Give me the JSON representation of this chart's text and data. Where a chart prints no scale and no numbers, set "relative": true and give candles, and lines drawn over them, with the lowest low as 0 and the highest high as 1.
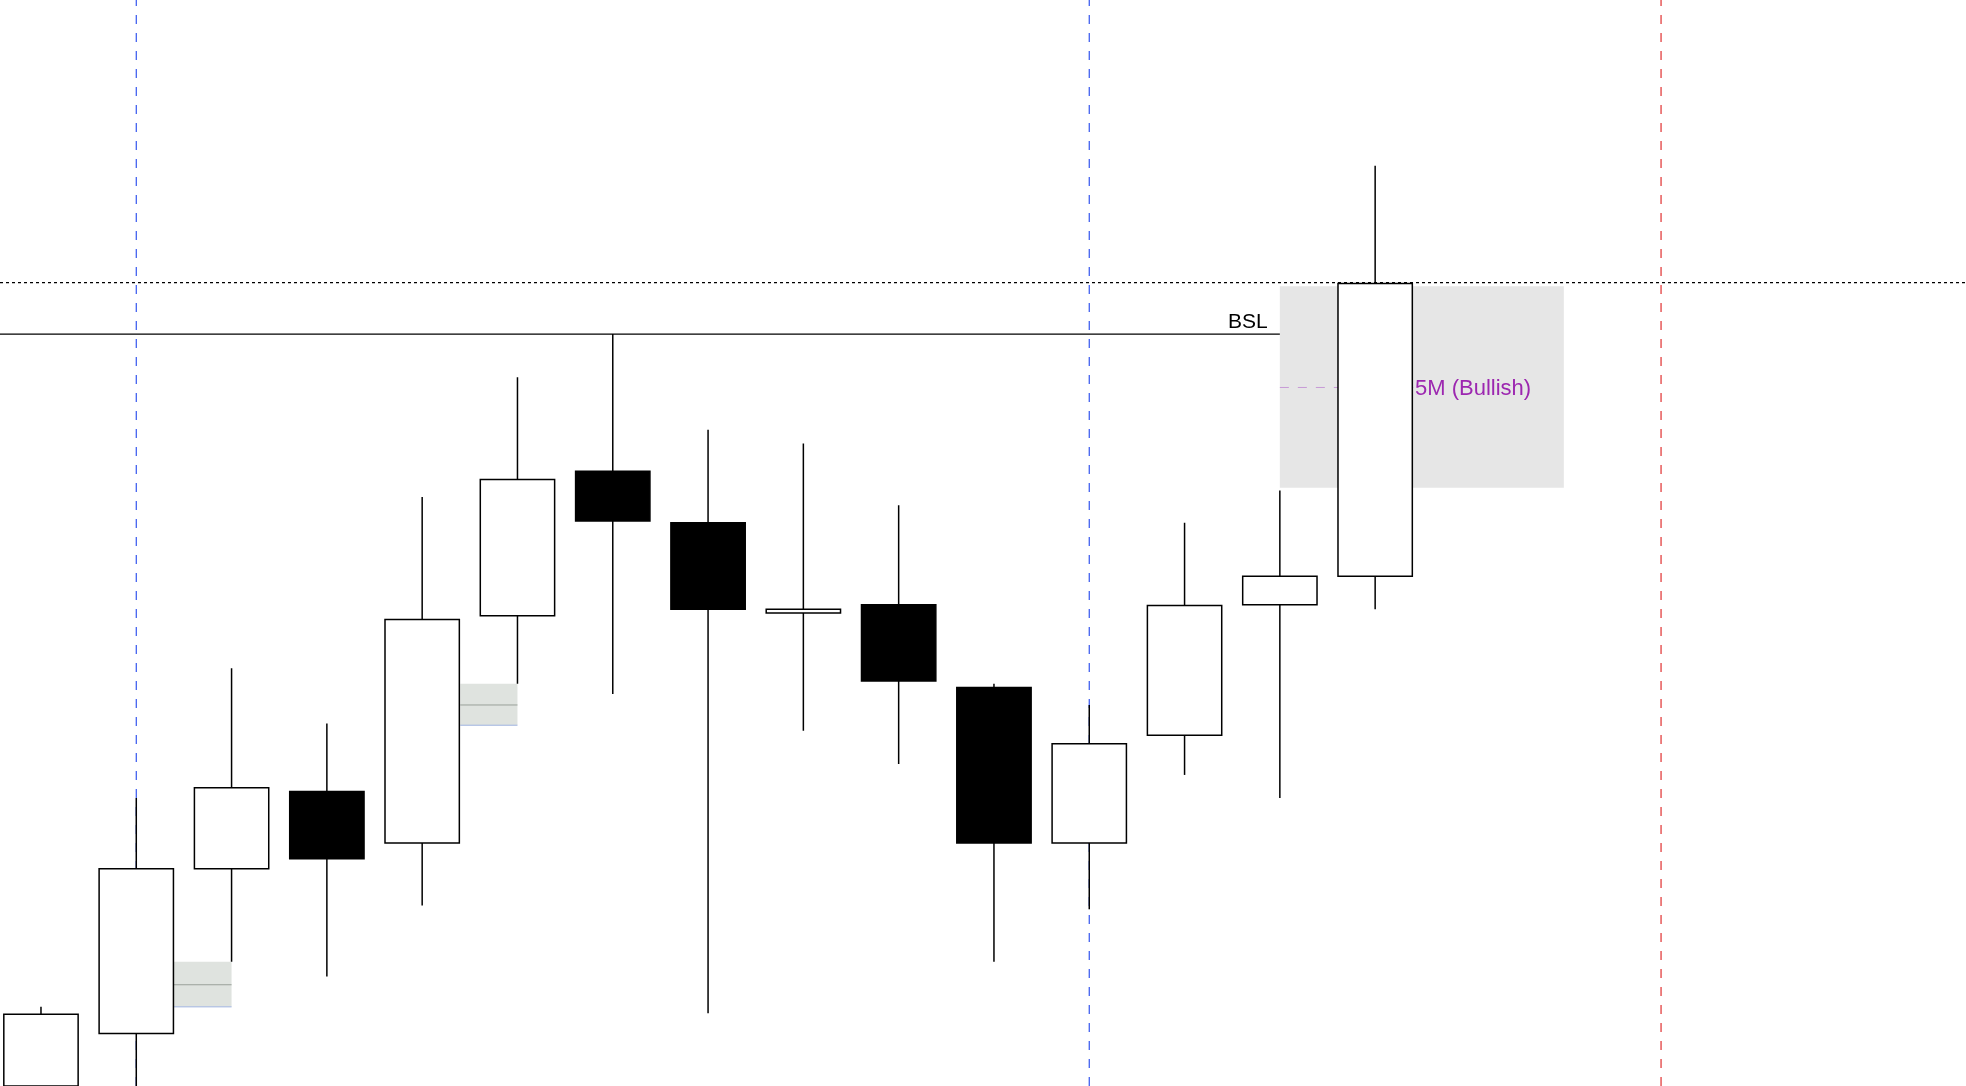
{
  "chart_data": {
    "type": "candlestick",
    "relative": true,
    "categories": [
      null,
      null,
      null,
      null,
      null,
      null,
      null,
      null,
      null,
      null,
      null,
      null,
      null,
      null,
      null
    ],
    "ohlc": [
      [
        0,
        0.086,
        0,
        0.078
      ],
      [
        0.057,
        0.313,
        0,
        0.236
      ],
      [
        0.236,
        0.454,
        0.135,
        0.324
      ],
      [
        0.32,
        0.394,
        0.119,
        0.247
      ],
      [
        0.264,
        0.64,
        0.196,
        0.507
      ],
      [
        0.511,
        0.77,
        0.437,
        0.659
      ],
      [
        0.668,
        0.817,
        0.426,
        0.614
      ],
      [
        0.612,
        0.713,
        0.079,
        0.518
      ],
      [
        0.514,
        0.698,
        0.386,
        0.518
      ],
      [
        0.523,
        0.631,
        0.35,
        0.44
      ],
      [
        0.433,
        0.437,
        0.135,
        0.264
      ],
      [
        0.264,
        0.414,
        0.192,
        0.372
      ],
      [
        0.381,
        0.612,
        0.338,
        0.522
      ],
      [
        0.523,
        0.647,
        0.313,
        0.554
      ],
      [
        0.554,
        1,
        0.518,
        0.872
      ]
    ],
    "ref_lines": [
      {
        "axis": "y",
        "value": 0.873,
        "label": null,
        "color": "#000000",
        "line_style": "dotted"
      },
      {
        "axis": "y",
        "value": 0.817,
        "label": "BSL",
        "color": "#000000",
        "line_style": "solid"
      }
    ],
    "annotations": [
      "5M (Bullish)"
    ]
  }
}
